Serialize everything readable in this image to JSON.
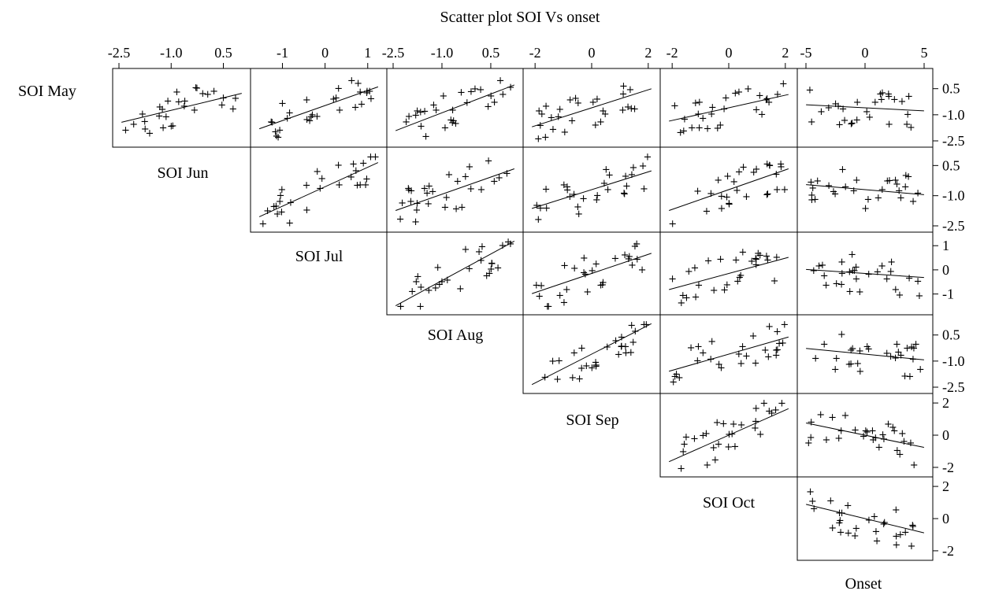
{
  "chart_data": {
    "type": "scatter",
    "title": "Scatter plot SOI Vs onset",
    "variables": [
      "SOI May",
      "SOI Jun",
      "SOI Jul",
      "SOI Aug",
      "SOI Sep",
      "SOI Oct",
      "Onset"
    ],
    "marker": "+",
    "grid": false,
    "axes": {
      "SOI May": {
        "range": [
          -2.5,
          1.3
        ],
        "ticks": [
          -2.5,
          -1.0,
          0.5
        ],
        "tick_labels": [
          "-2.5",
          "-1.0",
          "0.5"
        ]
      },
      "SOI Jun": {
        "range": [
          -2.5,
          1.1
        ],
        "ticks": [
          -2.5,
          -1.0,
          0.5
        ],
        "tick_labels": [
          "-2.5",
          "-1.0",
          "0.5"
        ]
      },
      "SOI Jul": {
        "range": [
          -1.6,
          1.3
        ],
        "ticks": [
          -1,
          0,
          1
        ],
        "tick_labels": [
          "-1",
          "0",
          "1"
        ]
      },
      "SOI Aug": {
        "range": [
          -2.5,
          1.3
        ],
        "ticks": [
          -2.5,
          -1.0,
          0.5
        ],
        "tick_labels": [
          "-2.5",
          "-1.0",
          "0.5"
        ]
      },
      "SOI Sep": {
        "range": [
          -2.2,
          2.2
        ],
        "ticks": [
          -2,
          0,
          2
        ],
        "tick_labels": [
          "-2",
          "0",
          "2"
        ]
      },
      "SOI Oct": {
        "range": [
          -2.2,
          2.2
        ],
        "ticks": [
          -2,
          0,
          2
        ],
        "tick_labels": [
          "-2",
          "0",
          "2"
        ]
      },
      "Onset": {
        "range": [
          -5.2,
          5.2
        ],
        "ticks": [
          -5,
          0,
          5
        ],
        "tick_labels": [
          "-5",
          "0",
          "5"
        ]
      }
    },
    "regression_lines": [
      {
        "x": "SOI Jun",
        "y": "SOI May",
        "slope": 0.38,
        "intercept": 0.0
      },
      {
        "x": "SOI Jul",
        "y": "SOI May",
        "slope": 0.55,
        "intercept": 0.0
      },
      {
        "x": "SOI Aug",
        "y": "SOI May",
        "slope": 0.6,
        "intercept": 0.0
      },
      {
        "x": "SOI Sep",
        "y": "SOI May",
        "slope": 0.5,
        "intercept": 0.0
      },
      {
        "x": "SOI Oct",
        "y": "SOI May",
        "slope": 0.35,
        "intercept": 0.0
      },
      {
        "x": "Onset",
        "y": "SOI May",
        "slope": -0.08,
        "intercept": 0.0
      },
      {
        "x": "SOI Jul",
        "y": "SOI Jun",
        "slope": 0.65,
        "intercept": 0.0
      },
      {
        "x": "SOI Aug",
        "y": "SOI Jun",
        "slope": 0.5,
        "intercept": 0.0
      },
      {
        "x": "SOI Sep",
        "y": "SOI Jun",
        "slope": 0.45,
        "intercept": 0.0
      },
      {
        "x": "SOI Oct",
        "y": "SOI Jun",
        "slope": 0.5,
        "intercept": 0.0
      },
      {
        "x": "Onset",
        "y": "SOI Jun",
        "slope": -0.12,
        "intercept": 0.0
      },
      {
        "x": "SOI Aug",
        "y": "SOI Jul",
        "slope": 0.8,
        "intercept": 0.0
      },
      {
        "x": "SOI Sep",
        "y": "SOI Jul",
        "slope": 0.5,
        "intercept": 0.0
      },
      {
        "x": "SOI Oct",
        "y": "SOI Jul",
        "slope": 0.4,
        "intercept": 0.0
      },
      {
        "x": "Onset",
        "y": "SOI Jul",
        "slope": -0.1,
        "intercept": 0.0
      },
      {
        "x": "SOI Sep",
        "y": "SOI Aug",
        "slope": 0.8,
        "intercept": 0.0
      },
      {
        "x": "SOI Oct",
        "y": "SOI Aug",
        "slope": 0.45,
        "intercept": 0.0
      },
      {
        "x": "Onset",
        "y": "SOI Aug",
        "slope": -0.15,
        "intercept": 0.0
      },
      {
        "x": "SOI Oct",
        "y": "SOI Sep",
        "slope": 0.65,
        "intercept": 0.0
      },
      {
        "x": "Onset",
        "y": "SOI Sep",
        "slope": -0.3,
        "intercept": 0.0
      },
      {
        "x": "Onset",
        "y": "SOI Oct",
        "slope": -0.35,
        "intercept": 0.0
      }
    ],
    "n_points_per_panel": 28
  }
}
